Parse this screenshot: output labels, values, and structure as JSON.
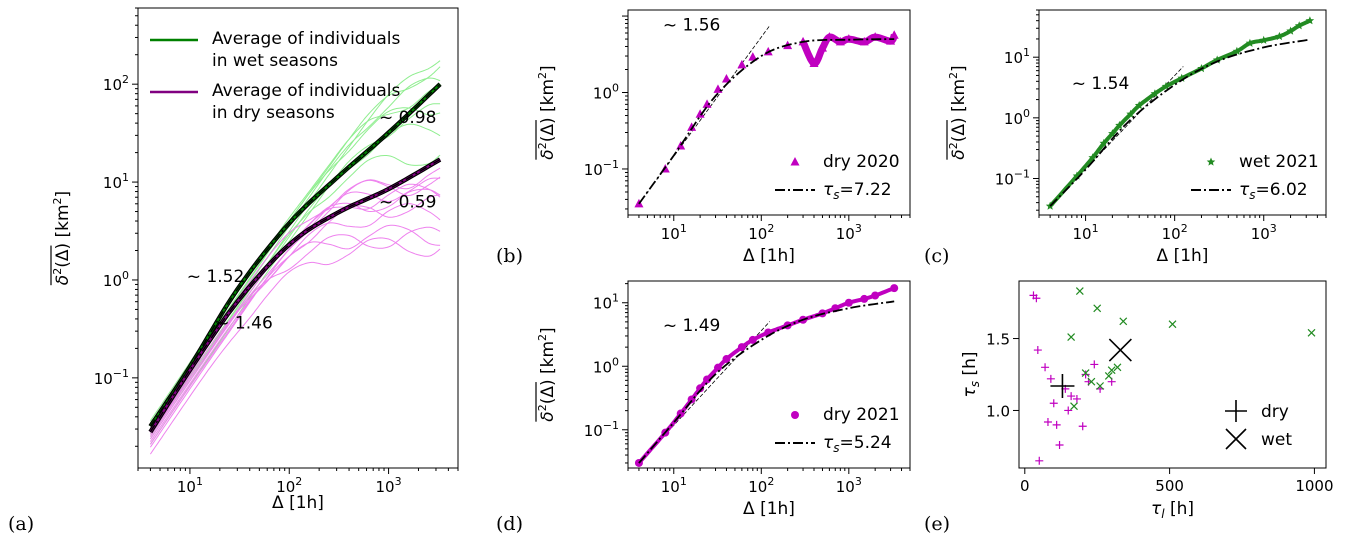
{
  "chart_data": [
    {
      "id": "a",
      "panel_label": "(a)",
      "type": "line",
      "xlabel": "Δ [1h]",
      "ylabel": "δ²(Δ) [km²]",
      "xscale": "log",
      "yscale": "log",
      "xlim": [
        3,
        5000
      ],
      "ylim": [
        0.012,
        600
      ],
      "xticks": [
        {
          "v": 10,
          "b": "10",
          "e": "1"
        },
        {
          "v": 100,
          "b": "10",
          "e": "2"
        },
        {
          "v": 1000,
          "b": "10",
          "e": "3"
        }
      ],
      "yticks": [
        {
          "v": 0.1,
          "b": "10",
          "e": "−1"
        },
        {
          "v": 1,
          "b": "10",
          "e": "0"
        },
        {
          "v": 10,
          "b": "10",
          "e": "1"
        },
        {
          "v": 100,
          "b": "10",
          "e": "2"
        }
      ],
      "legend": {
        "placement": "top-left",
        "items": [
          {
            "line1": "Average of individuals",
            "line2": "in wet seasons",
            "color": "#008000"
          },
          {
            "line1": "Average of individuals",
            "line2": "in dry seasons",
            "color": "#800080"
          }
        ]
      },
      "annotations": [
        {
          "text": "~ 0.98",
          "x": 800,
          "y": 40
        },
        {
          "text": "~ 0.59",
          "x": 800,
          "y": 5.5
        },
        {
          "text": "~ 1.52",
          "x": 9.3,
          "y": 0.95
        },
        {
          "text": "~ 1.46",
          "x": 18,
          "y": 0.32
        }
      ],
      "series": [
        {
          "name": "Average of individuals in wet seasons",
          "color": "#008000",
          "x": [
            4,
            10,
            30,
            100,
            300,
            1000,
            3300
          ],
          "y": [
            0.032,
            0.13,
            0.8,
            3.8,
            11,
            32,
            100
          ]
        },
        {
          "name": "Average of individuals in dry seasons",
          "color": "#800080",
          "x": [
            4,
            10,
            30,
            100,
            300,
            1000,
            3300
          ],
          "y": [
            0.028,
            0.12,
            0.6,
            2.3,
            4.8,
            8.5,
            17
          ]
        }
      ],
      "individual_colors": {
        "wet": "#90ee90",
        "dry": "#ee82ee"
      }
    },
    {
      "id": "b",
      "panel_label": "(b)",
      "type": "scatter",
      "xlabel": "Δ [1h]",
      "ylabel": "δ²(Δ) [km²]",
      "xscale": "log",
      "yscale": "log",
      "xlim": [
        3,
        5000
      ],
      "ylim": [
        0.025,
        12
      ],
      "xticks": [
        {
          "v": 10,
          "b": "10",
          "e": "1"
        },
        {
          "v": 100,
          "b": "10",
          "e": "2"
        },
        {
          "v": 1000,
          "b": "10",
          "e": "3"
        }
      ],
      "yticks": [
        {
          "v": 0.1,
          "b": "10",
          "e": "−1"
        },
        {
          "v": 1,
          "b": "10",
          "e": "0"
        }
      ],
      "annotation": {
        "text": "~ 1.56",
        "x": 7.5,
        "y": 6.5
      },
      "legend": {
        "placement": "bottom-right",
        "series_label": "dry 2020",
        "fit_label": "τ",
        "fit_sub": "s",
        "fit_value": "=7.22"
      },
      "marker": "triangle",
      "color": "#c000c0",
      "x": [
        4,
        8,
        12,
        16,
        20,
        24,
        32,
        40,
        60,
        80,
        120,
        200,
        300,
        400,
        500,
        600,
        800,
        1000,
        1500,
        2000,
        3000,
        3300
      ],
      "y": [
        0.035,
        0.1,
        0.2,
        0.35,
        0.52,
        0.7,
        1.1,
        1.5,
        2.3,
        2.9,
        3.4,
        4.1,
        4.6,
        2.4,
        3.8,
        5.3,
        4.6,
        5.0,
        4.6,
        5.3,
        4.7,
        5.6
      ],
      "fit": {
        "tau_s": 7.22,
        "x": [
          4,
          10,
          30,
          100,
          300,
          1000,
          3300
        ],
        "y": [
          0.035,
          0.15,
          0.9,
          3.0,
          4.6,
          4.9,
          5.0
        ]
      },
      "powerlaw_slope": 1.56
    },
    {
      "id": "c",
      "panel_label": "(c)",
      "type": "scatter",
      "xlabel": "Δ [1h]",
      "ylabel": "δ²(Δ) [km²]",
      "xscale": "log",
      "yscale": "log",
      "xlim": [
        3,
        5000
      ],
      "ylim": [
        0.025,
        60
      ],
      "xticks": [
        {
          "v": 10,
          "b": "10",
          "e": "1"
        },
        {
          "v": 100,
          "b": "10",
          "e": "2"
        },
        {
          "v": 1000,
          "b": "10",
          "e": "3"
        }
      ],
      "yticks": [
        {
          "v": 0.1,
          "b": "10",
          "e": "−1"
        },
        {
          "v": 1,
          "b": "10",
          "e": "0"
        },
        {
          "v": 10,
          "b": "10",
          "e": "1"
        }
      ],
      "annotation": {
        "text": "~ 1.54",
        "x": 7,
        "y": 3
      },
      "legend": {
        "placement": "bottom-right",
        "series_label": "wet 2021",
        "fit_label": "τ",
        "fit_sub": "s",
        "fit_value": "=6.02"
      },
      "marker": "star",
      "color": "#228b22",
      "x": [
        4,
        8,
        12,
        16,
        20,
        24,
        32,
        40,
        60,
        80,
        120,
        200,
        300,
        500,
        700,
        1000,
        1500,
        2000,
        2500,
        3300
      ],
      "y": [
        0.035,
        0.11,
        0.22,
        0.38,
        0.55,
        0.75,
        1.15,
        1.6,
        2.5,
        3.3,
        4.5,
        6.5,
        9,
        12.5,
        17,
        19,
        22,
        27,
        33,
        40
      ],
      "fit": {
        "tau_s": 6.02,
        "x": [
          4,
          10,
          30,
          100,
          300,
          1000,
          3300
        ],
        "y": [
          0.035,
          0.14,
          0.85,
          3.5,
          8.5,
          14.5,
          19.5
        ]
      },
      "powerlaw_slope": 1.54
    },
    {
      "id": "d",
      "panel_label": "(d)",
      "type": "scatter",
      "xlabel": "Δ [1h]",
      "ylabel": "δ²(Δ) [km²]",
      "xscale": "log",
      "yscale": "log",
      "xlim": [
        3,
        5000
      ],
      "ylim": [
        0.025,
        22
      ],
      "xticks": [
        {
          "v": 10,
          "b": "10",
          "e": "1"
        },
        {
          "v": 100,
          "b": "10",
          "e": "2"
        },
        {
          "v": 1000,
          "b": "10",
          "e": "3"
        }
      ],
      "yticks": [
        {
          "v": 0.1,
          "b": "10",
          "e": "−1"
        },
        {
          "v": 1,
          "b": "10",
          "e": "0"
        },
        {
          "v": 10,
          "b": "10",
          "e": "1"
        }
      ],
      "annotation": {
        "text": "~ 1.49",
        "x": 7.5,
        "y": 3.6
      },
      "legend": {
        "placement": "bottom-right",
        "series_label": "dry 2021",
        "fit_label": "τ",
        "fit_sub": "s",
        "fit_value": "=5.24"
      },
      "marker": "circle",
      "color": "#c000c0",
      "x": [
        4,
        8,
        12,
        16,
        20,
        24,
        32,
        40,
        60,
        80,
        120,
        200,
        300,
        500,
        700,
        1000,
        1500,
        2000,
        3300
      ],
      "y": [
        0.03,
        0.09,
        0.18,
        0.3,
        0.45,
        0.62,
        0.95,
        1.3,
        2.0,
        2.6,
        3.4,
        4.4,
        5.4,
        6.8,
        8.2,
        10,
        11.5,
        13,
        17
      ],
      "fit": {
        "tau_s": 5.24,
        "x": [
          4,
          10,
          30,
          100,
          300,
          1000,
          3300
        ],
        "y": [
          0.03,
          0.13,
          0.75,
          2.6,
          5.4,
          8.2,
          10.5
        ]
      },
      "powerlaw_slope": 1.49
    },
    {
      "id": "e",
      "panel_label": "(e)",
      "type": "scatter",
      "xlabel": "τ_l [h]",
      "ylabel": "τ_s [h]",
      "xscale": "linear",
      "yscale": "linear",
      "xlim": [
        -20,
        1040
      ],
      "ylim": [
        0.6,
        1.9
      ],
      "xticks": [
        {
          "v": 0,
          "t": "0"
        },
        {
          "v": 500,
          "t": "500"
        },
        {
          "v": 1000,
          "t": "1000"
        }
      ],
      "yticks": [
        {
          "v": 1.0,
          "t": "1.0"
        },
        {
          "v": 1.5,
          "t": "1.5"
        }
      ],
      "legend": {
        "placement": "bottom-right",
        "items": [
          {
            "label": "dry",
            "marker": "plus"
          },
          {
            "label": "wet",
            "marker": "x"
          }
        ]
      },
      "series": [
        {
          "name": "dry",
          "marker": "plus",
          "color": "#c000c0",
          "x": [
            30,
            40,
            45,
            70,
            90,
            100,
            110,
            120,
            140,
            150,
            160,
            180,
            200,
            220,
            240,
            260,
            300,
            50,
            80,
            210
          ],
          "y": [
            1.8,
            1.78,
            1.42,
            1.3,
            1.22,
            1.05,
            0.9,
            0.76,
            1.15,
            1.0,
            1.1,
            1.08,
            0.89,
            1.2,
            1.32,
            1.15,
            1.2,
            0.65,
            0.92,
            1.25
          ]
        },
        {
          "name": "wet",
          "marker": "x",
          "color": "#228b22",
          "x": [
            160,
            190,
            210,
            250,
            260,
            290,
            300,
            320,
            340,
            510,
            990,
            170,
            230
          ],
          "y": [
            1.51,
            1.83,
            1.26,
            1.71,
            1.17,
            1.24,
            1.28,
            1.3,
            1.62,
            1.6,
            1.54,
            1.03,
            1.2
          ]
        },
        {
          "name": "dry mean",
          "marker": "plus-big",
          "color": "#000000",
          "x": [
            130
          ],
          "y": [
            1.17
          ]
        },
        {
          "name": "wet mean",
          "marker": "x-big",
          "color": "#000000",
          "x": [
            330
          ],
          "y": [
            1.42
          ]
        }
      ]
    }
  ]
}
